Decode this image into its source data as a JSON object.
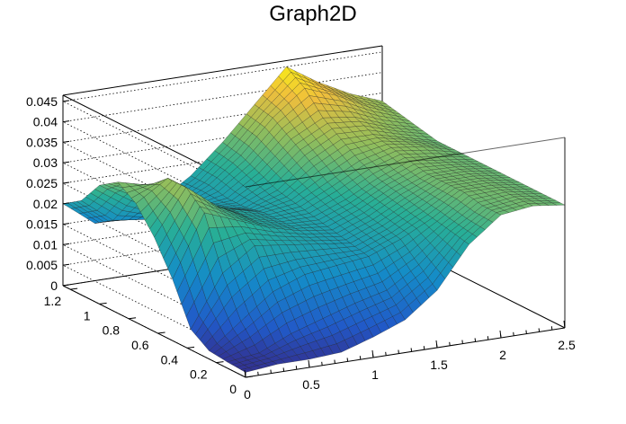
{
  "chart_data": {
    "type": "surface",
    "title": "Graph2D",
    "xlabel": "",
    "ylabel": "",
    "zlabel": "",
    "x_range": [
      0,
      2.5
    ],
    "y_range": [
      0,
      1.25
    ],
    "z_range": [
      0,
      0.0465
    ],
    "x_ticks": [
      {
        "value": 0,
        "label": "0"
      },
      {
        "value": 0.5,
        "label": "0.5"
      },
      {
        "value": 1,
        "label": "1"
      },
      {
        "value": 1.5,
        "label": "1.5"
      },
      {
        "value": 2,
        "label": "2"
      },
      {
        "value": 2.5,
        "label": "2.5"
      }
    ],
    "y_ticks": [
      {
        "value": 0,
        "label": "0"
      },
      {
        "value": 0.2,
        "label": "0.2"
      },
      {
        "value": 0.4,
        "label": "0.4"
      },
      {
        "value": 0.6,
        "label": "0.6"
      },
      {
        "value": 0.8,
        "label": "0.8"
      },
      {
        "value": 1,
        "label": "1"
      },
      {
        "value": 1.2,
        "label": "1.2"
      }
    ],
    "z_ticks": [
      {
        "value": 0,
        "label": "0"
      },
      {
        "value": 0.005,
        "label": "0.005"
      },
      {
        "value": 0.01,
        "label": "0.01"
      },
      {
        "value": 0.015,
        "label": "0.015"
      },
      {
        "value": 0.02,
        "label": "0.02"
      },
      {
        "value": 0.025,
        "label": "0.025"
      },
      {
        "value": 0.03,
        "label": "0.03"
      },
      {
        "value": 0.035,
        "label": "0.035"
      },
      {
        "value": 0.04,
        "label": "0.04"
      },
      {
        "value": 0.045,
        "label": "0.045"
      }
    ],
    "grid": true,
    "colormap": "viridis-like",
    "colors": {
      "low": "#2a3a9a",
      "mid": "#2aa58a",
      "high": "#f5e12a"
    },
    "surface": {
      "x": [
        0,
        0.25,
        0.5,
        0.75,
        1,
        1.25,
        1.5,
        1.75,
        2,
        2.25,
        2.5
      ],
      "y": [
        0,
        0.125,
        0.25,
        0.375,
        0.5,
        0.625,
        0.75,
        0.875,
        1,
        1.125,
        1.25
      ],
      "z": [
        [
          0.0012,
          0.002,
          0.002,
          0.0025,
          0.005,
          0.008,
          0.014,
          0.024,
          0.03,
          0.031,
          0.03
        ],
        [
          0.0015,
          0.0025,
          0.006,
          0.0085,
          0.011,
          0.013,
          0.018,
          0.025,
          0.03,
          0.031,
          0.03
        ],
        [
          0.002,
          0.008,
          0.014,
          0.017,
          0.018,
          0.019,
          0.022,
          0.026,
          0.031,
          0.031,
          0.03
        ],
        [
          0.005,
          0.0175,
          0.023,
          0.022,
          0.021,
          0.02,
          0.023,
          0.027,
          0.031,
          0.031,
          0.03
        ],
        [
          0.015,
          0.03,
          0.027,
          0.024,
          0.022,
          0.021,
          0.024,
          0.028,
          0.031,
          0.031,
          0.03
        ],
        [
          0.023,
          0.034,
          0.028,
          0.024,
          0.022,
          0.022,
          0.025,
          0.029,
          0.032,
          0.031,
          0.03
        ],
        [
          0.029,
          0.034,
          0.027,
          0.024,
          0.022,
          0.023,
          0.027,
          0.031,
          0.033,
          0.032,
          0.03
        ],
        [
          0.032,
          0.03,
          0.024,
          0.022,
          0.021,
          0.024,
          0.03,
          0.034,
          0.034,
          0.032,
          0.03
        ],
        [
          0.029,
          0.024,
          0.02,
          0.02,
          0.021,
          0.026,
          0.033,
          0.037,
          0.036,
          0.033,
          0.031
        ],
        [
          0.023,
          0.017,
          0.016,
          0.018,
          0.022,
          0.028,
          0.036,
          0.042,
          0.039,
          0.035,
          0.032
        ],
        [
          0.02,
          0.014,
          0.014,
          0.017,
          0.022,
          0.029,
          0.037,
          0.045,
          0.04,
          0.036,
          0.033
        ]
      ]
    }
  }
}
